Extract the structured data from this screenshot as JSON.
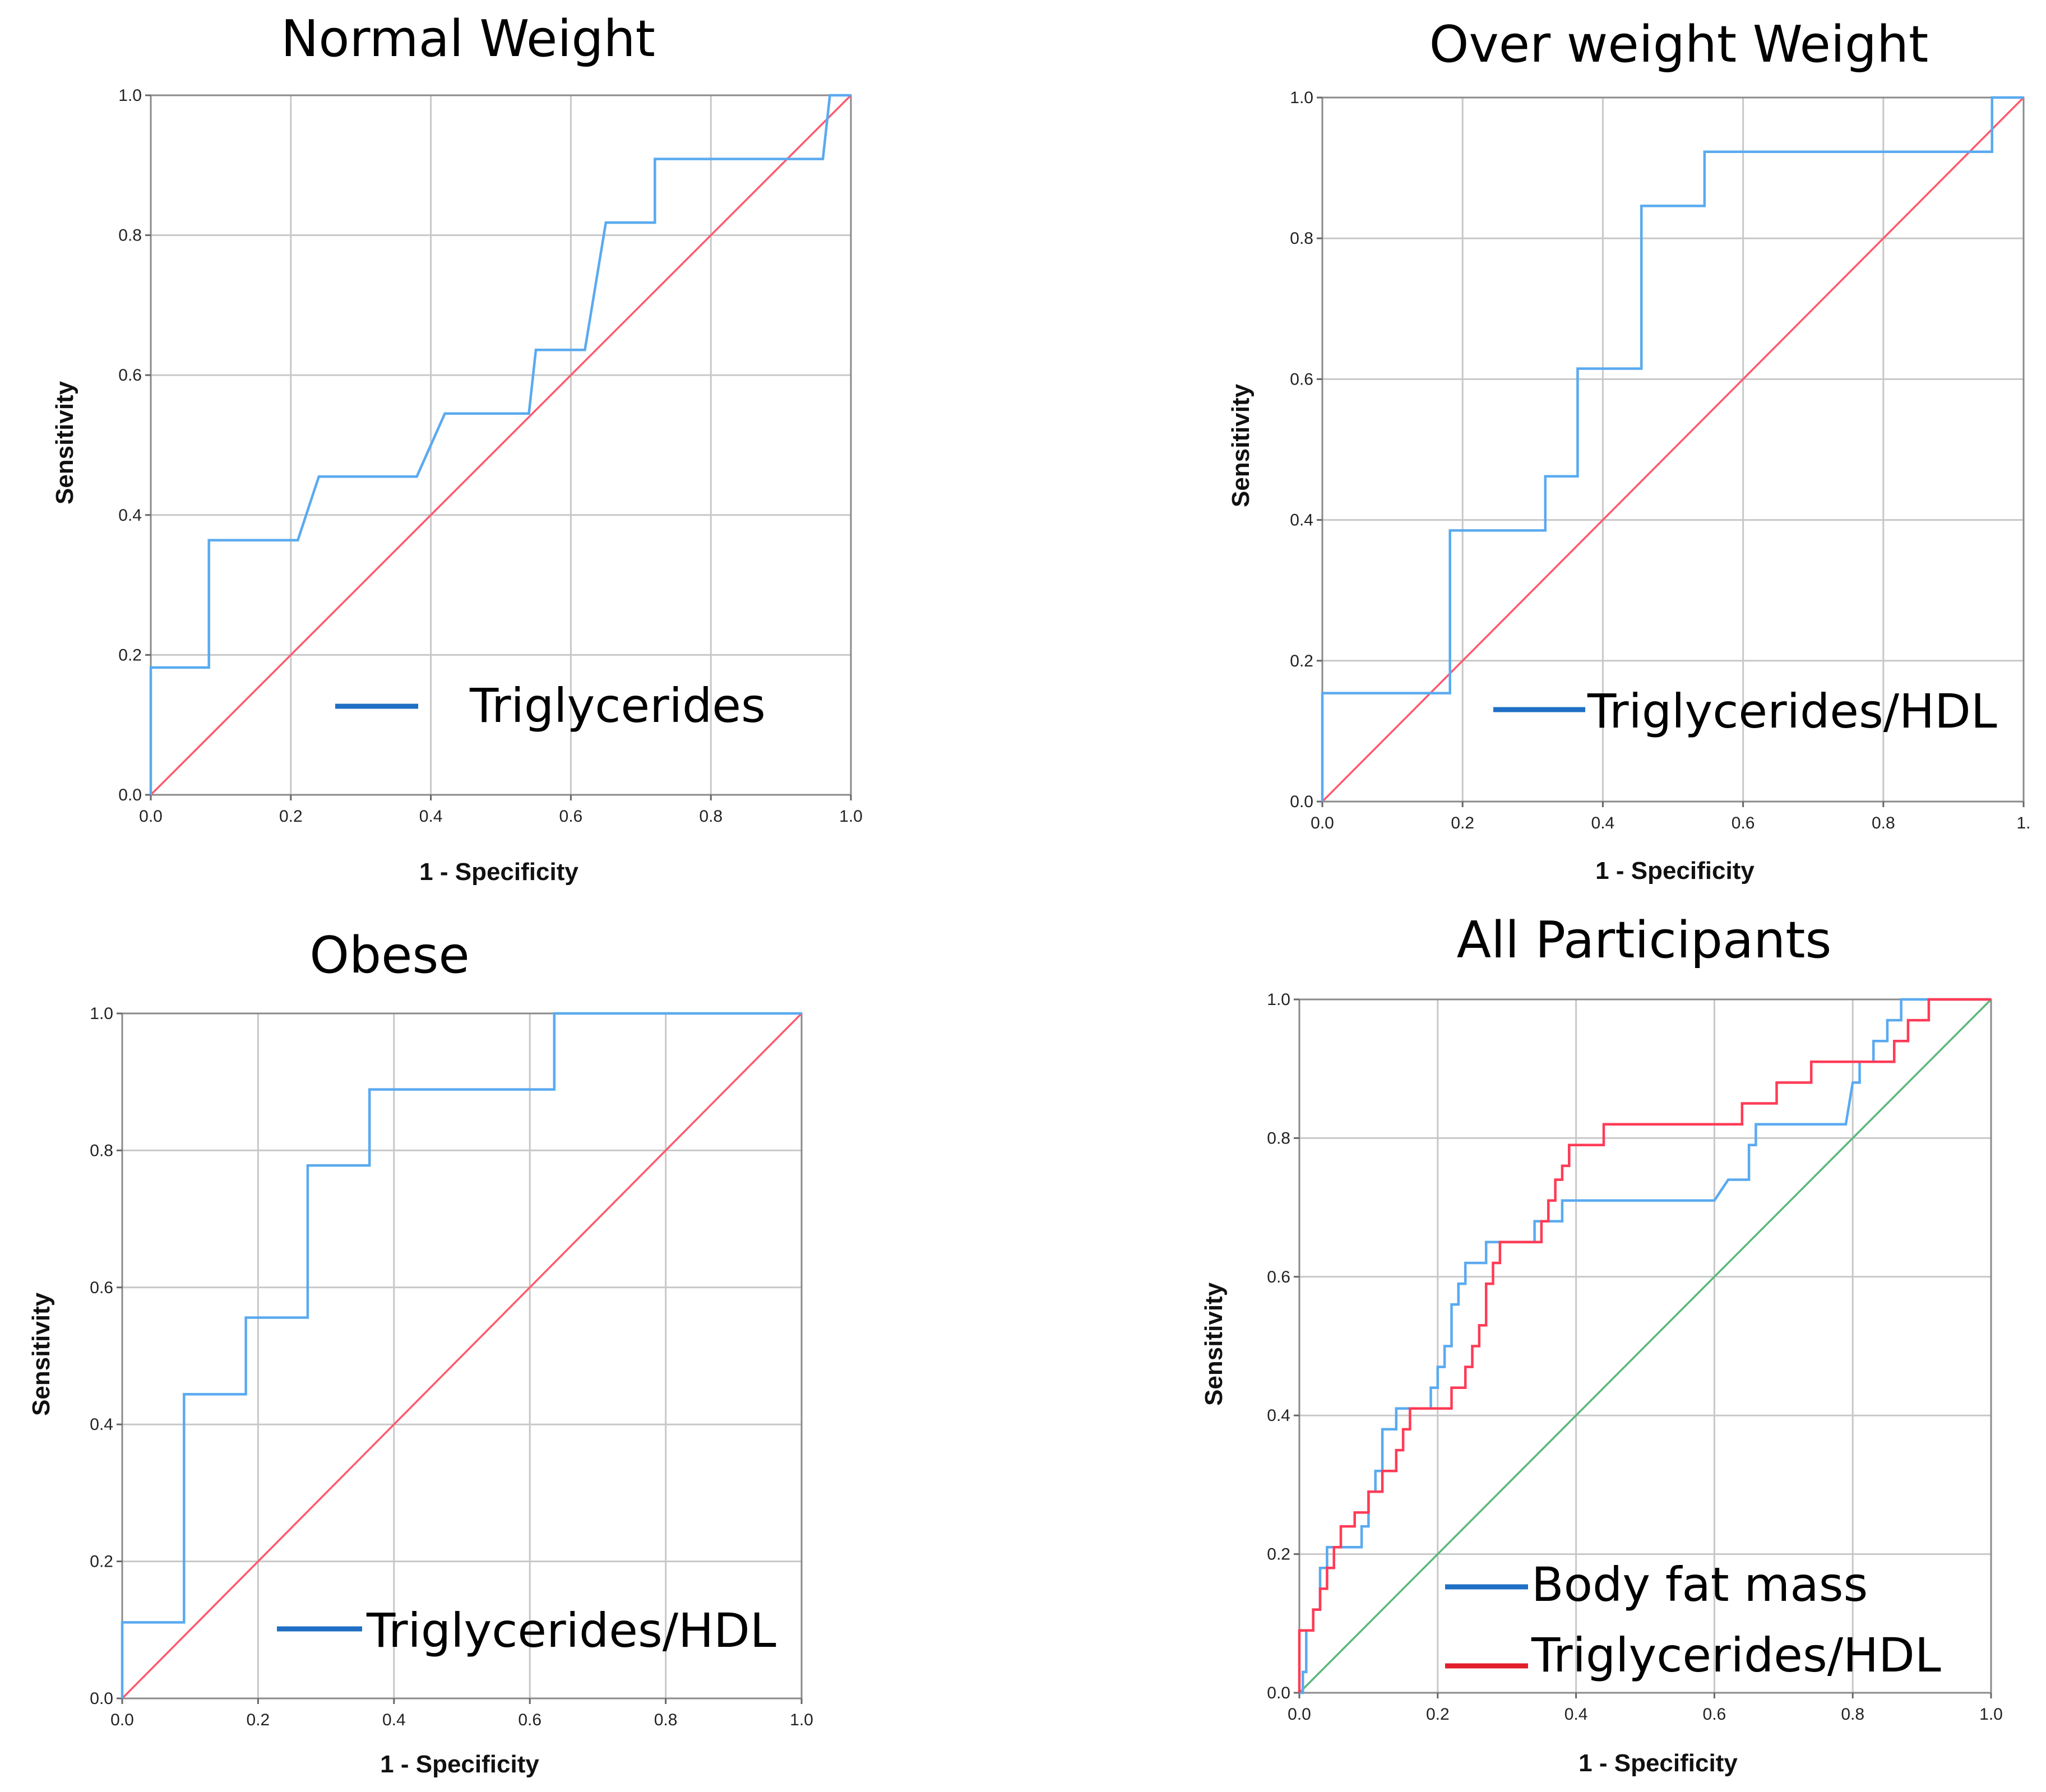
{
  "chart_data": [
    {
      "type": "line",
      "title": "Normal Weight",
      "xlabel": "1 - Specificity",
      "ylabel": "Sensitivity",
      "xlim": [
        0,
        1
      ],
      "ylim": [
        0,
        1
      ],
      "ticks": [
        "0.0",
        "0.2",
        "0.4",
        "0.6",
        "0.8",
        "1.0"
      ],
      "x_tick_labels": [
        "0.0",
        "0.2",
        "0.4",
        "0.6",
        "0.8",
        "1.0"
      ],
      "grid": true,
      "legend": [
        "Triglycerides"
      ],
      "series": [
        {
          "name": "Triglycerides",
          "color": "#5aaaf0",
          "x": [
            0,
            0,
            0.083,
            0.083,
            0.21,
            0.24,
            0.38,
            0.42,
            0.54,
            0.55,
            0.62,
            0.65,
            0.72,
            0.72,
            0.96,
            0.97,
            1.0
          ],
          "y": [
            0,
            0.182,
            0.182,
            0.364,
            0.364,
            0.455,
            0.455,
            0.545,
            0.545,
            0.636,
            0.636,
            0.818,
            0.818,
            0.909,
            0.909,
            1.0,
            1.0
          ]
        },
        {
          "name": "Reference",
          "color": "#ff5a6e",
          "x": [
            0,
            1
          ],
          "y": [
            0,
            1
          ]
        }
      ]
    },
    {
      "type": "line",
      "title": "Over weight Weight",
      "xlabel": "1 - Specificity",
      "ylabel": "Sensitivity",
      "xlim": [
        0,
        1
      ],
      "ylim": [
        0,
        1
      ],
      "ticks": [
        "0.0",
        "0.2",
        "0.4",
        "0.6",
        "0.8",
        "1.0"
      ],
      "x_tick_labels": [
        "0.0",
        "0.2",
        "0.4",
        "0.6",
        "0.8",
        "1."
      ],
      "grid": true,
      "legend": [
        "Triglycerides/HDL"
      ],
      "series": [
        {
          "name": "Triglycerides/HDL",
          "color": "#5aaaf0",
          "x": [
            0,
            0,
            0.182,
            0.182,
            0.318,
            0.318,
            0.364,
            0.364,
            0.455,
            0.455,
            0.545,
            0.545,
            0.955,
            0.955,
            1.0
          ],
          "y": [
            0,
            0.154,
            0.154,
            0.385,
            0.385,
            0.462,
            0.462,
            0.615,
            0.615,
            0.846,
            0.846,
            0.923,
            0.923,
            1.0,
            1.0
          ]
        },
        {
          "name": "Reference",
          "color": "#ff5a6e",
          "x": [
            0,
            1
          ],
          "y": [
            0,
            1
          ]
        }
      ]
    },
    {
      "type": "line",
      "title": "Obese",
      "xlabel": "1 - Specificity",
      "ylabel": "Sensitivity",
      "xlim": [
        0,
        1
      ],
      "ylim": [
        0,
        1
      ],
      "ticks": [
        "0.0",
        "0.2",
        "0.4",
        "0.6",
        "0.8",
        "1.0"
      ],
      "x_tick_labels": [
        "0.0",
        "0.2",
        "0.4",
        "0.6",
        "0.8",
        "1.0"
      ],
      "grid": true,
      "legend": [
        "Triglycerides/HDL"
      ],
      "series": [
        {
          "name": "Triglycerides/HDL",
          "color": "#5aaaf0",
          "x": [
            0,
            0,
            0.091,
            0.091,
            0.182,
            0.182,
            0.273,
            0.273,
            0.364,
            0.364,
            0.636,
            0.636,
            1.0
          ],
          "y": [
            0,
            0.111,
            0.111,
            0.444,
            0.444,
            0.556,
            0.556,
            0.778,
            0.778,
            0.889,
            0.889,
            1.0,
            1.0
          ]
        },
        {
          "name": "Reference",
          "color": "#ff5a6e",
          "x": [
            0,
            1
          ],
          "y": [
            0,
            1
          ]
        }
      ]
    },
    {
      "type": "line",
      "title": "All Participants",
      "xlabel": "1 - Specificity",
      "ylabel": "Sensitivity",
      "xlim": [
        0,
        1
      ],
      "ylim": [
        0,
        1
      ],
      "ticks": [
        "0.0",
        "0.2",
        "0.4",
        "0.6",
        "0.8",
        "1.0"
      ],
      "x_tick_labels": [
        "0.0",
        "0.2",
        "0.4",
        "0.6",
        "0.8",
        "1.0"
      ],
      "grid": true,
      "legend": [
        "Body fat mass",
        "Triglycerides/HDL"
      ],
      "series": [
        {
          "name": "Body fat mass",
          "color": "#5aaaf0",
          "x": [
            0,
            0.005,
            0.005,
            0.01,
            0.01,
            0.02,
            0.02,
            0.03,
            0.03,
            0.04,
            0.04,
            0.06,
            0.06,
            0.09,
            0.09,
            0.1,
            0.1,
            0.11,
            0.11,
            0.12,
            0.12,
            0.13,
            0.13,
            0.14,
            0.14,
            0.15,
            0.15,
            0.19,
            0.19,
            0.2,
            0.2,
            0.21,
            0.21,
            0.22,
            0.22,
            0.23,
            0.23,
            0.24,
            0.24,
            0.25,
            0.25,
            0.27,
            0.27,
            0.3,
            0.3,
            0.34,
            0.34,
            0.36,
            0.36,
            0.38,
            0.38,
            0.4,
            0.4,
            0.6,
            0.62,
            0.65,
            0.65,
            0.66,
            0.66,
            0.79,
            0.8,
            0.81,
            0.81,
            0.83,
            0.83,
            0.85,
            0.85,
            0.86,
            0.86,
            0.87,
            0.87,
            0.88,
            0.88,
            1.0
          ],
          "y": [
            0,
            0,
            0.03,
            0.03,
            0.09,
            0.09,
            0.12,
            0.12,
            0.18,
            0.18,
            0.21,
            0.21,
            0.21,
            0.21,
            0.24,
            0.24,
            0.29,
            0.29,
            0.32,
            0.32,
            0.38,
            0.38,
            0.38,
            0.38,
            0.41,
            0.41,
            0.41,
            0.41,
            0.44,
            0.44,
            0.47,
            0.47,
            0.5,
            0.5,
            0.56,
            0.56,
            0.59,
            0.59,
            0.62,
            0.62,
            0.62,
            0.62,
            0.65,
            0.65,
            0.65,
            0.65,
            0.68,
            0.68,
            0.68,
            0.68,
            0.71,
            0.71,
            0.71,
            0.71,
            0.74,
            0.74,
            0.79,
            0.79,
            0.82,
            0.82,
            0.88,
            0.88,
            0.91,
            0.91,
            0.94,
            0.94,
            0.97,
            0.97,
            0.97,
            0.97,
            1.0,
            1.0,
            1.0,
            1.0
          ]
        },
        {
          "name": "Triglycerides/HDL",
          "color": "#ff3b56",
          "x": [
            0,
            0,
            0.02,
            0.02,
            0.03,
            0.03,
            0.04,
            0.04,
            0.05,
            0.05,
            0.06,
            0.06,
            0.08,
            0.08,
            0.1,
            0.1,
            0.12,
            0.12,
            0.14,
            0.14,
            0.15,
            0.15,
            0.16,
            0.16,
            0.22,
            0.22,
            0.24,
            0.24,
            0.25,
            0.25,
            0.26,
            0.26,
            0.27,
            0.27,
            0.28,
            0.28,
            0.29,
            0.29,
            0.35,
            0.35,
            0.36,
            0.36,
            0.37,
            0.37,
            0.38,
            0.38,
            0.39,
            0.39,
            0.41,
            0.41,
            0.44,
            0.44,
            0.46,
            0.46,
            0.64,
            0.64,
            0.69,
            0.69,
            0.71,
            0.71,
            0.74,
            0.74,
            0.79,
            0.79,
            0.86,
            0.86,
            0.88,
            0.88,
            0.9,
            0.9,
            0.91,
            0.91,
            1.0
          ],
          "y": [
            0,
            0.09,
            0.09,
            0.12,
            0.12,
            0.15,
            0.15,
            0.18,
            0.18,
            0.21,
            0.21,
            0.24,
            0.24,
            0.26,
            0.26,
            0.29,
            0.29,
            0.32,
            0.32,
            0.35,
            0.35,
            0.38,
            0.38,
            0.41,
            0.41,
            0.44,
            0.44,
            0.47,
            0.47,
            0.5,
            0.5,
            0.53,
            0.53,
            0.59,
            0.59,
            0.62,
            0.62,
            0.65,
            0.65,
            0.68,
            0.68,
            0.71,
            0.71,
            0.74,
            0.74,
            0.76,
            0.76,
            0.79,
            0.79,
            0.79,
            0.79,
            0.82,
            0.82,
            0.82,
            0.82,
            0.85,
            0.85,
            0.88,
            0.88,
            0.88,
            0.88,
            0.91,
            0.91,
            0.91,
            0.91,
            0.94,
            0.94,
            0.97,
            0.97,
            0.97,
            0.97,
            1.0,
            1.0
          ]
        },
        {
          "name": "Reference",
          "color": "#5cb87a",
          "x": [
            0,
            1
          ],
          "y": [
            0,
            1
          ]
        }
      ]
    }
  ]
}
